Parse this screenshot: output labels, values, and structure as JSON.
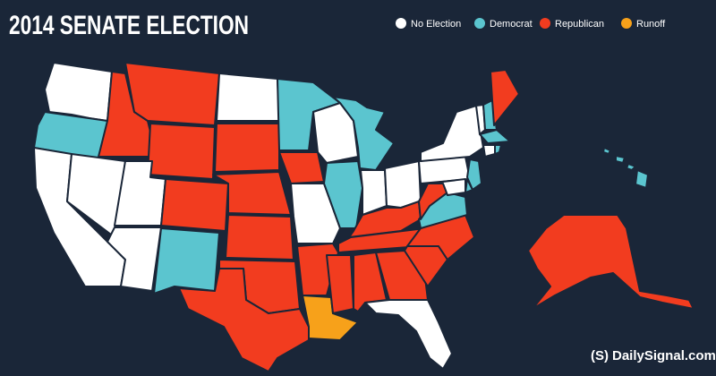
{
  "header": {
    "title": "2014 SENATE ELECTION"
  },
  "legend": [
    {
      "label": "No Election",
      "color": "#ffffff"
    },
    {
      "label": "Democrat",
      "color": "#5bc5cf"
    },
    {
      "label": "Republican",
      "color": "#f23c1f"
    },
    {
      "label": "Runoff",
      "color": "#f7a11a"
    }
  ],
  "footer": {
    "logo": "(S)",
    "site": "DailySignal.com"
  }
}
